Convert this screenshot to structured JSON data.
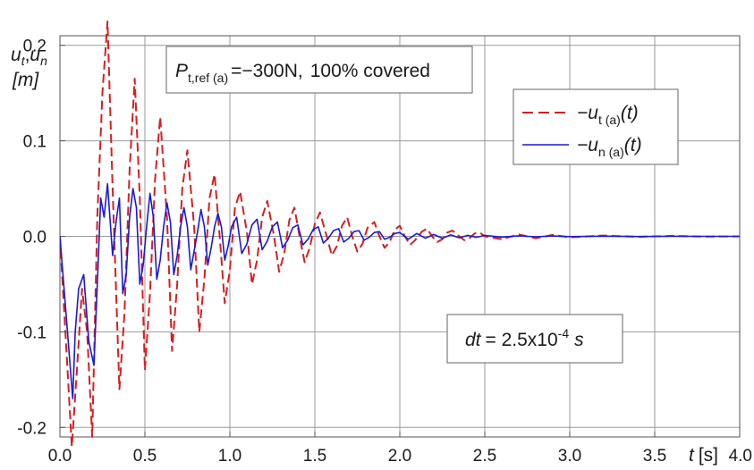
{
  "chart_data": {
    "type": "line",
    "ylabel_top": "u",
    "ylabel_top_sub": "t",
    "ylabel_sep": ",",
    "ylabel_top2": "u",
    "ylabel_top2_sub": "n",
    "ylabel_unit": "[m]",
    "xlabel": "t [s]",
    "xlabel_var": "t",
    "xlabel_unit": "[s]",
    "xlim": [
      0,
      4.0
    ],
    "ylim": [
      -0.21,
      0.21
    ],
    "x_ticks": [
      "0.0",
      "0.5",
      "1.0",
      "1.5",
      "2.0",
      "2.5",
      "3.0",
      "3.5",
      "4.0"
    ],
    "y_ticks": [
      "0.2",
      "0.1",
      "0.0",
      "-0.1",
      "-0.2"
    ],
    "grid": true,
    "legend_position": "upper-right",
    "annotation_load": {
      "symbol": "P",
      "subscript": "t,ref (a)",
      "value": "=−300N,",
      "coverage": "100% covered"
    },
    "annotation_dt": {
      "var": "dt",
      "value": "= 2.5x10",
      "exponent": "-4",
      "unit": "s"
    },
    "series": [
      {
        "name": "−u t(a)(t)",
        "legend_main": "−u",
        "legend_sub": "t (a)",
        "legend_arg": "(t)",
        "color": "#d42020",
        "dash": "dashed",
        "x": [
          0.0,
          0.035,
          0.07,
          0.1,
          0.13,
          0.16,
          0.19,
          0.22,
          0.25,
          0.28,
          0.31,
          0.35,
          0.38,
          0.41,
          0.44,
          0.47,
          0.5,
          0.53,
          0.56,
          0.59,
          0.63,
          0.66,
          0.69,
          0.72,
          0.75,
          0.79,
          0.82,
          0.85,
          0.88,
          0.91,
          0.94,
          0.97,
          1.0,
          1.03,
          1.06,
          1.1,
          1.13,
          1.16,
          1.19,
          1.22,
          1.26,
          1.29,
          1.32,
          1.35,
          1.38,
          1.41,
          1.44,
          1.47,
          1.5,
          1.53,
          1.57,
          1.6,
          1.63,
          1.66,
          1.69,
          1.72,
          1.75,
          1.78,
          1.81,
          1.85,
          1.88,
          1.91,
          1.94,
          1.97,
          2.0,
          2.03,
          2.06,
          2.09,
          2.13,
          2.16,
          2.19,
          2.22,
          2.25,
          2.28,
          2.31,
          2.35,
          2.38,
          2.41,
          2.44,
          2.47,
          2.5,
          2.6,
          2.7,
          2.8,
          2.9,
          3.0,
          3.2,
          3.4,
          3.6,
          3.8,
          4.0
        ],
        "y": [
          0.0,
          -0.11,
          -0.22,
          -0.14,
          -0.055,
          -0.1,
          -0.21,
          0.02,
          0.15,
          0.225,
          0.05,
          -0.16,
          -0.08,
          0.07,
          0.165,
          0.04,
          -0.14,
          -0.06,
          0.06,
          0.125,
          0.02,
          -0.12,
          -0.05,
          0.05,
          0.09,
          0.01,
          -0.1,
          -0.045,
          0.04,
          0.065,
          0.0,
          -0.07,
          -0.035,
          0.03,
          0.047,
          0.005,
          -0.05,
          -0.025,
          0.02,
          0.037,
          0.0,
          -0.037,
          -0.018,
          0.017,
          0.03,
          0.0,
          -0.027,
          -0.012,
          0.013,
          0.025,
          0.0,
          -0.02,
          -0.01,
          0.011,
          0.02,
          0.0,
          -0.016,
          -0.008,
          0.009,
          0.015,
          0.0,
          -0.012,
          -0.006,
          0.007,
          0.011,
          0.0,
          -0.009,
          -0.004,
          0.005,
          0.008,
          0.0,
          -0.006,
          -0.003,
          0.004,
          0.006,
          0.0,
          -0.004,
          -0.002,
          0.003,
          0.004,
          0.0,
          -0.003,
          0.002,
          -0.002,
          0.0015,
          -0.001,
          0.0008,
          -0.0006,
          0.0005,
          -0.0003,
          0.0
        ]
      },
      {
        "name": "−u n(a)(t)",
        "legend_main": "−u",
        "legend_sub": "n (a)",
        "legend_arg": "(t)",
        "color": "#1a1ad6",
        "dash": "solid",
        "x": [
          0.0,
          0.04,
          0.075,
          0.09,
          0.11,
          0.14,
          0.17,
          0.2,
          0.22,
          0.24,
          0.26,
          0.28,
          0.29,
          0.31,
          0.33,
          0.35,
          0.37,
          0.39,
          0.41,
          0.43,
          0.45,
          0.47,
          0.49,
          0.51,
          0.53,
          0.55,
          0.57,
          0.59,
          0.61,
          0.63,
          0.65,
          0.67,
          0.69,
          0.71,
          0.73,
          0.75,
          0.77,
          0.79,
          0.81,
          0.83,
          0.85,
          0.87,
          0.89,
          0.91,
          0.93,
          0.95,
          0.97,
          0.99,
          1.01,
          1.04,
          1.07,
          1.1,
          1.13,
          1.16,
          1.19,
          1.22,
          1.25,
          1.28,
          1.31,
          1.34,
          1.37,
          1.4,
          1.43,
          1.46,
          1.49,
          1.52,
          1.55,
          1.58,
          1.61,
          1.64,
          1.67,
          1.7,
          1.73,
          1.76,
          1.79,
          1.82,
          1.85,
          1.88,
          1.91,
          1.94,
          1.97,
          2.0,
          2.05,
          2.1,
          2.15,
          2.2,
          2.25,
          2.3,
          2.35,
          2.4,
          2.45,
          2.5,
          2.6,
          2.7,
          2.8,
          2.9,
          3.0,
          3.2,
          3.4,
          3.6,
          3.8,
          4.0
        ],
        "y": [
          0.0,
          -0.09,
          -0.17,
          -0.1,
          -0.055,
          -0.04,
          -0.11,
          -0.135,
          -0.05,
          0.04,
          0.02,
          0.055,
          0.03,
          -0.02,
          0.015,
          0.04,
          -0.06,
          -0.04,
          0.02,
          0.05,
          0.03,
          -0.05,
          -0.03,
          0.01,
          0.045,
          0.02,
          -0.045,
          -0.025,
          0.01,
          0.035,
          0.015,
          -0.04,
          -0.02,
          0.01,
          0.03,
          0.01,
          -0.035,
          -0.015,
          0.005,
          0.028,
          0.01,
          -0.03,
          -0.012,
          0.01,
          0.024,
          0.01,
          -0.025,
          -0.01,
          0.01,
          0.02,
          -0.018,
          -0.008,
          0.012,
          0.018,
          -0.014,
          -0.005,
          0.01,
          0.015,
          -0.012,
          -0.004,
          0.009,
          0.012,
          -0.009,
          -0.003,
          0.007,
          0.01,
          -0.007,
          -0.002,
          0.006,
          0.008,
          -0.006,
          -0.002,
          0.005,
          0.006,
          -0.004,
          -0.001,
          0.004,
          0.005,
          -0.003,
          -0.001,
          0.003,
          0.004,
          -0.003,
          0.003,
          -0.002,
          0.002,
          -0.002,
          0.0015,
          -0.0015,
          0.001,
          -0.001,
          0.001,
          -0.0008,
          0.0006,
          -0.0005,
          0.0004,
          -0.0003,
          0.0002,
          -0.0002,
          0.0001,
          0.0,
          0.0
        ]
      }
    ]
  }
}
